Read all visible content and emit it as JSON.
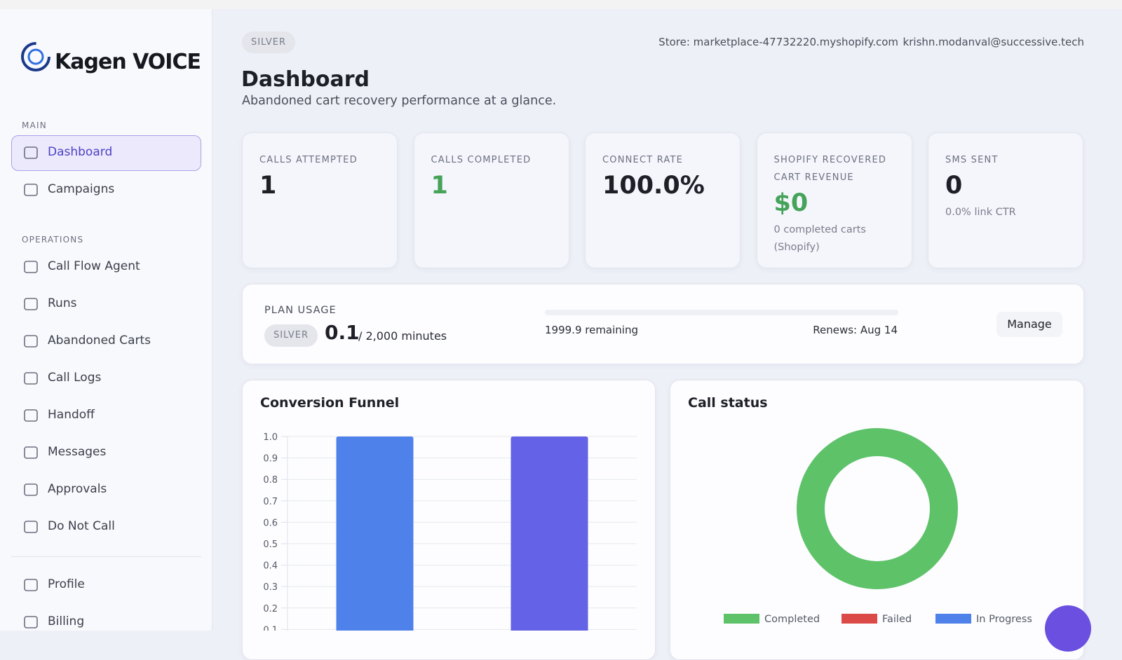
{
  "sidebar": {
    "logo": "Kagen VOICE",
    "sections": [
      {
        "title": "MAIN",
        "items": [
          "Dashboard",
          "Campaigns"
        ]
      },
      {
        "title": "OPERATIONS",
        "items": [
          "Call Flow Agent",
          "Runs",
          "Abandoned Carts",
          "Call Logs",
          "Handoff",
          "Messages",
          "Approvals",
          "Do Not Call"
        ]
      },
      {
        "items": [
          "Profile",
          "Billing"
        ]
      }
    ]
  },
  "header": {
    "plan_badge": "SILVER",
    "store": "Store: marketplace-47732220.myshopify.com",
    "email": "krishn.modanval@successive.tech",
    "title": "Dashboard",
    "subtitle": "Abandoned cart recovery performance at a glance."
  },
  "stats": [
    {
      "label": "CALLS ATTEMPTED",
      "value": "1"
    },
    {
      "label": "CALLS COMPLETED",
      "value": "1"
    },
    {
      "label": "CONNECT RATE",
      "value": "100.0%"
    },
    {
      "label": "SHOPIFY RECOVERED CART REVENUE",
      "value": "$0",
      "note": "0 completed carts (Shopify)"
    },
    {
      "label": "SMS SENT",
      "value": "0",
      "note": "0.0% link CTR"
    }
  ],
  "plan_usage": {
    "title": "PLAN USAGE",
    "badge": "SILVER",
    "used": "0.1",
    "limit": "/ 2,000 minutes",
    "remaining": "1999.9 remaining",
    "renews": "Renews: Aug 14",
    "button": "Manage"
  },
  "chart_data": [
    {
      "type": "bar",
      "title": "Conversion Funnel",
      "categories": [
        null,
        null
      ],
      "values": [
        1,
        1
      ],
      "colors": [
        "#4f81ea",
        "#6462e6"
      ],
      "ylim": [
        0,
        1
      ],
      "yticks": [
        0.1,
        0.2,
        0.3,
        0.4,
        0.5,
        0.6,
        0.7,
        0.8,
        0.9,
        {
          "value": 1,
          "label": "1.0"
        }
      ],
      "grid": true
    },
    {
      "type": "pie",
      "title": "Call status",
      "donut": true,
      "categories": [
        "Completed",
        "Failed",
        "In Progress"
      ],
      "values": [
        1,
        0,
        0
      ],
      "colors": [
        "#5ec269",
        "#dc4a48",
        "#4f81ea"
      ],
      "legend": "bottom"
    }
  ]
}
